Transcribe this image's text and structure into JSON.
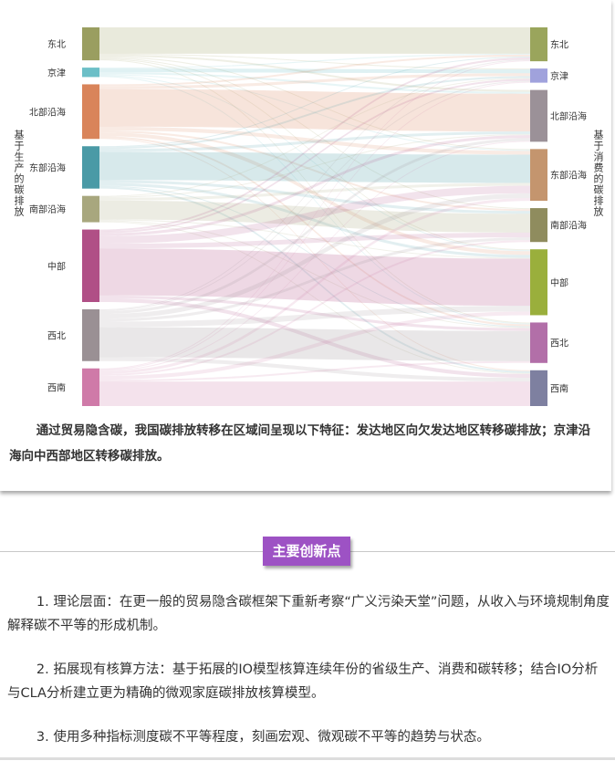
{
  "chart_data": {
    "type": "sankey",
    "left_label": "基于生产的碳排放",
    "right_label": "基于消费的碳排放",
    "sources": [
      {
        "name": "东北",
        "color": "#9a9e60"
      },
      {
        "name": "京津",
        "color": "#6cbfc7"
      },
      {
        "name": "北部沿海",
        "color": "#d9845a"
      },
      {
        "name": "东部沿海",
        "color": "#4a9aa6"
      },
      {
        "name": "南部沿海",
        "color": "#a8a77e"
      },
      {
        "name": "中部",
        "color": "#b04f86"
      },
      {
        "name": "西北",
        "color": "#9a9094"
      },
      {
        "name": "西南",
        "color": "#cf7aa8"
      }
    ],
    "targets": [
      {
        "name": "东北",
        "color": "#9aa55c"
      },
      {
        "name": "京津",
        "color": "#a0a2dc"
      },
      {
        "name": "北部沿海",
        "color": "#9b9198"
      },
      {
        "name": "东部沿海",
        "color": "#c4956e"
      },
      {
        "name": "南部沿海",
        "color": "#8f8c5e"
      },
      {
        "name": "中部",
        "color": "#9aaf3c"
      },
      {
        "name": "西北",
        "color": "#b26fa8"
      },
      {
        "name": "西南",
        "color": "#7e80a0"
      }
    ],
    "flows": [
      [
        28,
        1,
        2,
        1,
        1,
        1,
        1,
        0
      ],
      [
        1,
        4,
        2,
        1,
        0,
        1,
        1,
        0
      ],
      [
        2,
        3,
        40,
        4,
        2,
        4,
        2,
        1
      ],
      [
        1,
        2,
        3,
        30,
        3,
        3,
        1,
        2
      ],
      [
        0,
        1,
        1,
        3,
        20,
        1,
        1,
        1
      ],
      [
        2,
        2,
        3,
        8,
        5,
        50,
        3,
        4
      ],
      [
        1,
        1,
        3,
        5,
        3,
        6,
        32,
        4
      ],
      [
        1,
        1,
        1,
        3,
        2,
        4,
        2,
        26
      ]
    ]
  },
  "caption": "通过贸易隐含碳，我国碳排放转移在区域间呈现以下特征：发达地区向欠发达地区转移碳排放；京津沿海向中西部地区转移碳排放。",
  "section_title": "主要创新点",
  "paragraphs": [
    "1. 理论层面：在更一般的贸易隐含碳框架下重新考察“广义污染天堂”问题，从收入与环境规制角度解释碳不平等的形成机制。",
    "2. 拓展现有核算方法：基于拓展的IO模型核算连续年份的省级生产、消费和碳转移；结合IO分析与CLA分析建立更为精确的微观家庭碳排放核算模型。",
    "3. 使用多种指标测度碳不平等程度，刻画宏观、微观碳不平等的趋势与状态。"
  ]
}
